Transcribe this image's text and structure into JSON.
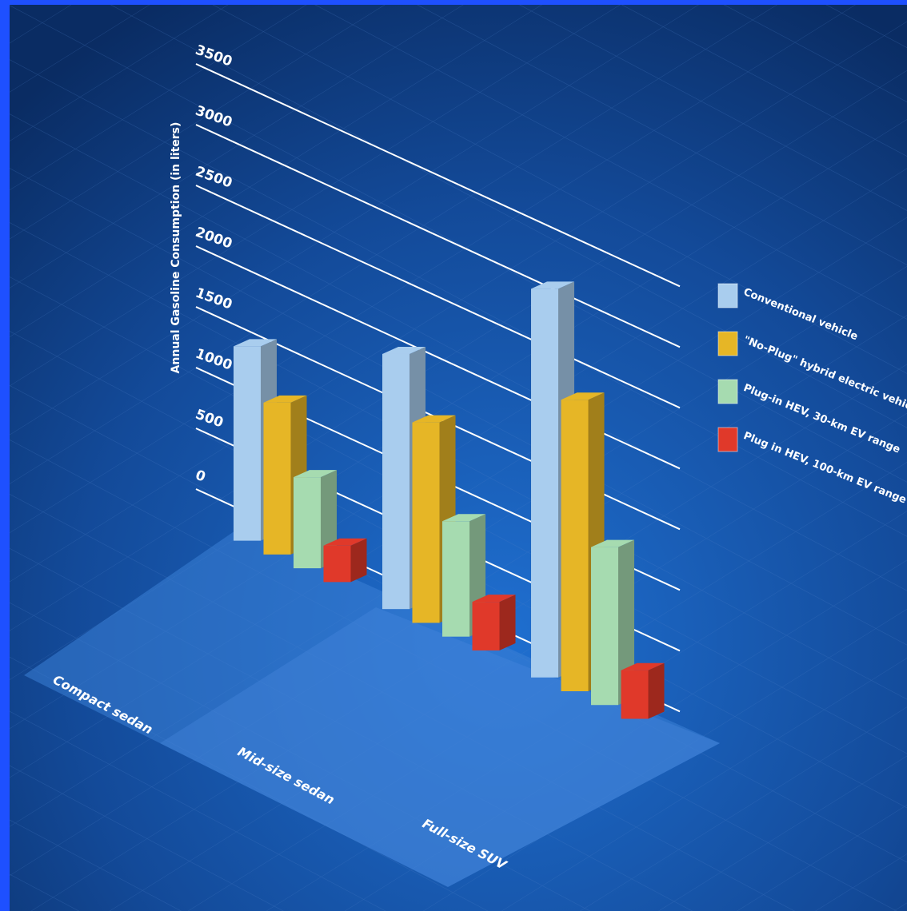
{
  "chart_data": {
    "type": "bar3d",
    "y_label": "Annual Gasoline Consumption (in liters)",
    "categories": [
      "Compact sedan",
      "Mid-size sedan",
      "Full-size SUV"
    ],
    "series": [
      {
        "name": "Conventional vehicle",
        "color": "#a9cdee",
        "values": [
          1600,
          2100,
          3200
        ]
      },
      {
        "name": "\"No-Plug\" hybrid electric vehicle (HEV)",
        "color": "#e6b626",
        "values": [
          1250,
          1650,
          2400
        ]
      },
      {
        "name": "Plug-in HEV, 30-km EV range",
        "color": "#a6dbb0",
        "values": [
          750,
          950,
          1300
        ]
      },
      {
        "name": "Plug in HEV, 100-km EV range",
        "color": "#e0392a",
        "values": [
          300,
          400,
          400
        ]
      }
    ],
    "ylim": [
      0,
      3500
    ],
    "yticks": [
      0,
      500,
      1000,
      1500,
      2000,
      2500,
      3000,
      3500
    ],
    "grid": true
  }
}
